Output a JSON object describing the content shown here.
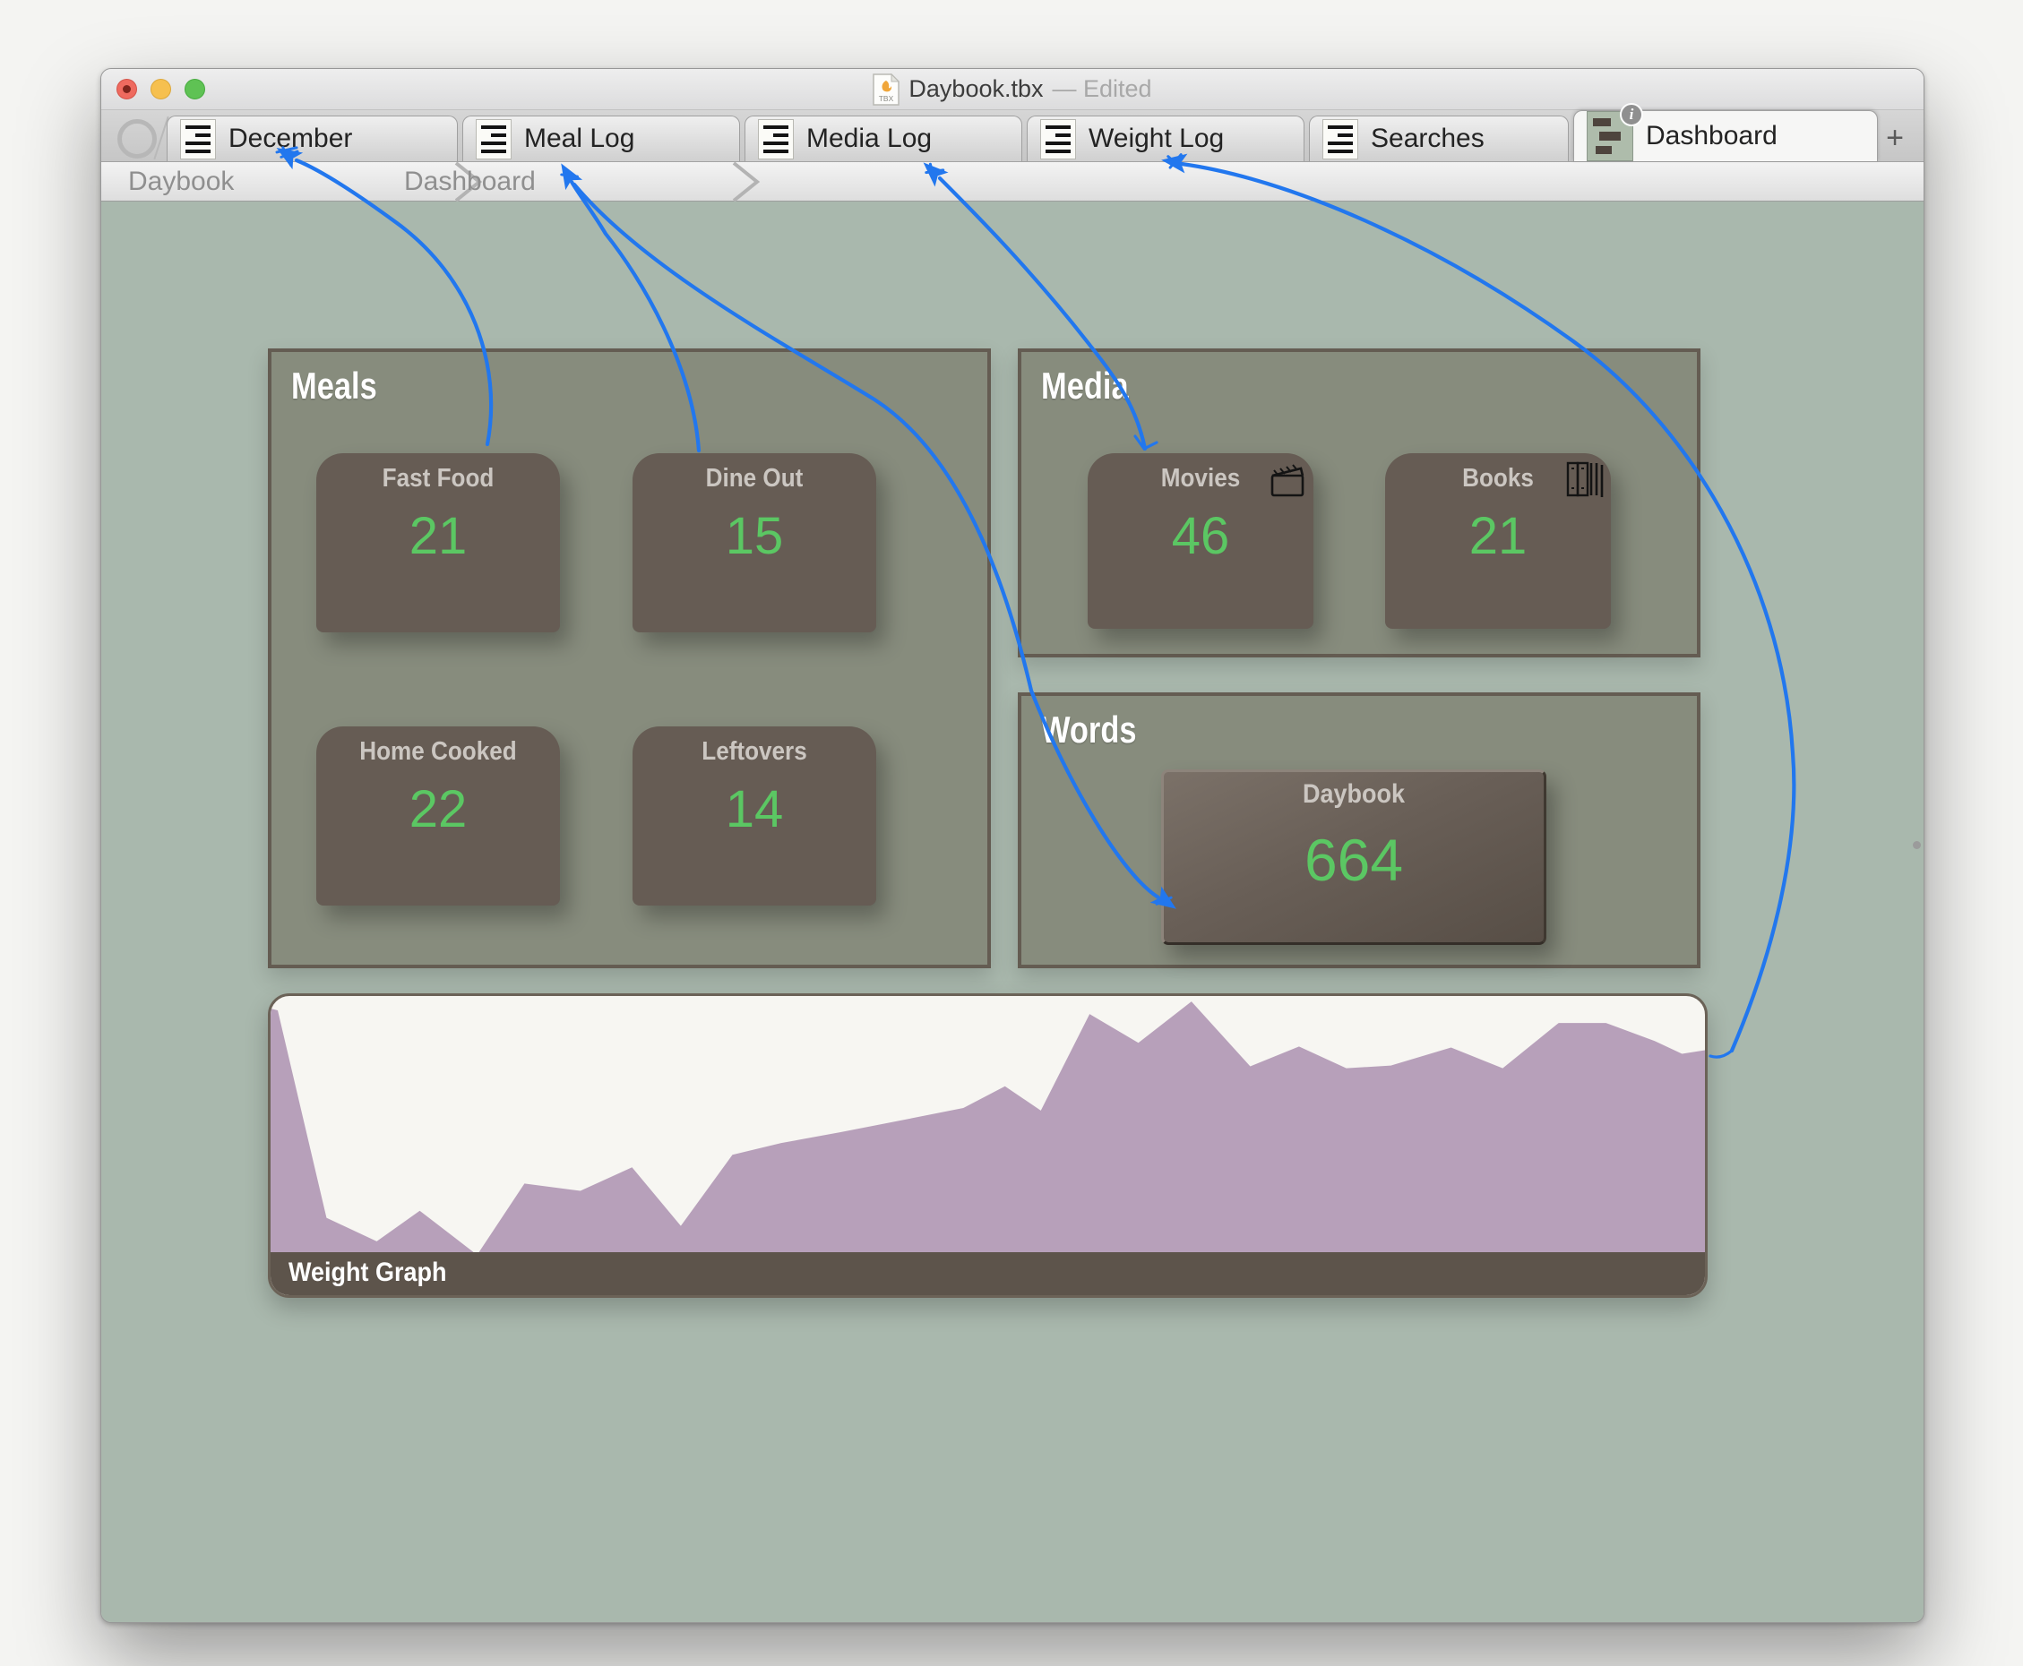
{
  "colors": {
    "accent_link_blue": "#2277ee",
    "count_green": "#5bc763",
    "graph_purple": "#b7a0ba",
    "content_background": "#a9b8ad",
    "container_fill": "#878c7d",
    "container_border": "#645c52",
    "card_fill": "#665c54",
    "footer_brown": "#5d544b"
  },
  "window": {
    "title_filename": "Daybook.tbx",
    "title_status": "— Edited",
    "file_icon_label": "TBX"
  },
  "tab_bar": {
    "tabs": [
      {
        "label": "December",
        "icon": "note-icon",
        "active": false
      },
      {
        "label": "Meal Log",
        "icon": "note-icon",
        "active": false
      },
      {
        "label": "Media Log",
        "icon": "note-icon",
        "active": false
      },
      {
        "label": "Weight Log",
        "icon": "note-icon",
        "active": false
      },
      {
        "label": "Searches",
        "icon": "note-icon",
        "active": false
      },
      {
        "label": "Dashboard",
        "icon": "map-thumbnail-icon",
        "active": true,
        "badge": "i"
      }
    ],
    "add_tab_label": "+"
  },
  "breadcrumb": {
    "items": [
      "Daybook",
      "Dashboard"
    ]
  },
  "dashboard": {
    "meals": {
      "title": "Meals",
      "cards": [
        {
          "label": "Fast Food",
          "value": "21"
        },
        {
          "label": "Dine Out",
          "value": "15"
        },
        {
          "label": "Home Cooked",
          "value": "22"
        },
        {
          "label": "Leftovers",
          "value": "14"
        }
      ]
    },
    "media": {
      "title": "Media",
      "cards": [
        {
          "label": "Movies",
          "value": "46",
          "icon": "clapperboard-icon"
        },
        {
          "label": "Books",
          "value": "21",
          "icon": "books-icon"
        }
      ]
    },
    "words": {
      "title": "Words",
      "cards": [
        {
          "label": "Daybook",
          "value": "664"
        }
      ]
    },
    "weight_graph": {
      "label": "Weight Graph"
    }
  },
  "chart_data": {
    "type": "area",
    "title": "Weight Graph",
    "xlabel": "",
    "ylabel": "",
    "legend": false,
    "grid": false,
    "note": "unlabeled weight-over-time sparkline; y_pct measured from top of plot area",
    "points_pct": [
      [
        0,
        4.8
      ],
      [
        0.5,
        5.5
      ],
      [
        3.9,
        84.8
      ],
      [
        7.4,
        93.8
      ],
      [
        10.4,
        82.1
      ],
      [
        14.4,
        99.0
      ],
      [
        17.7,
        71.7
      ],
      [
        21.6,
        74.5
      ],
      [
        25.2,
        65.5
      ],
      [
        28.6,
        87.9
      ],
      [
        32.2,
        60.7
      ],
      [
        35.6,
        56.2
      ],
      [
        39.7,
        52.1
      ],
      [
        43.9,
        47.6
      ],
      [
        48.3,
        42.8
      ],
      [
        51.2,
        34.5
      ],
      [
        53.7,
        43.8
      ],
      [
        57.1,
        6.9
      ],
      [
        60.5,
        17.9
      ],
      [
        64.2,
        2.1
      ],
      [
        68.3,
        26.9
      ],
      [
        71.7,
        19.3
      ],
      [
        75.0,
        27.6
      ],
      [
        78.1,
        26.6
      ],
      [
        82.3,
        19.7
      ],
      [
        85.9,
        27.6
      ],
      [
        89.8,
        10.3
      ],
      [
        93.1,
        10.3
      ],
      [
        96.5,
        17.2
      ],
      [
        98.4,
        22.1
      ],
      [
        100,
        20.7
      ]
    ]
  }
}
